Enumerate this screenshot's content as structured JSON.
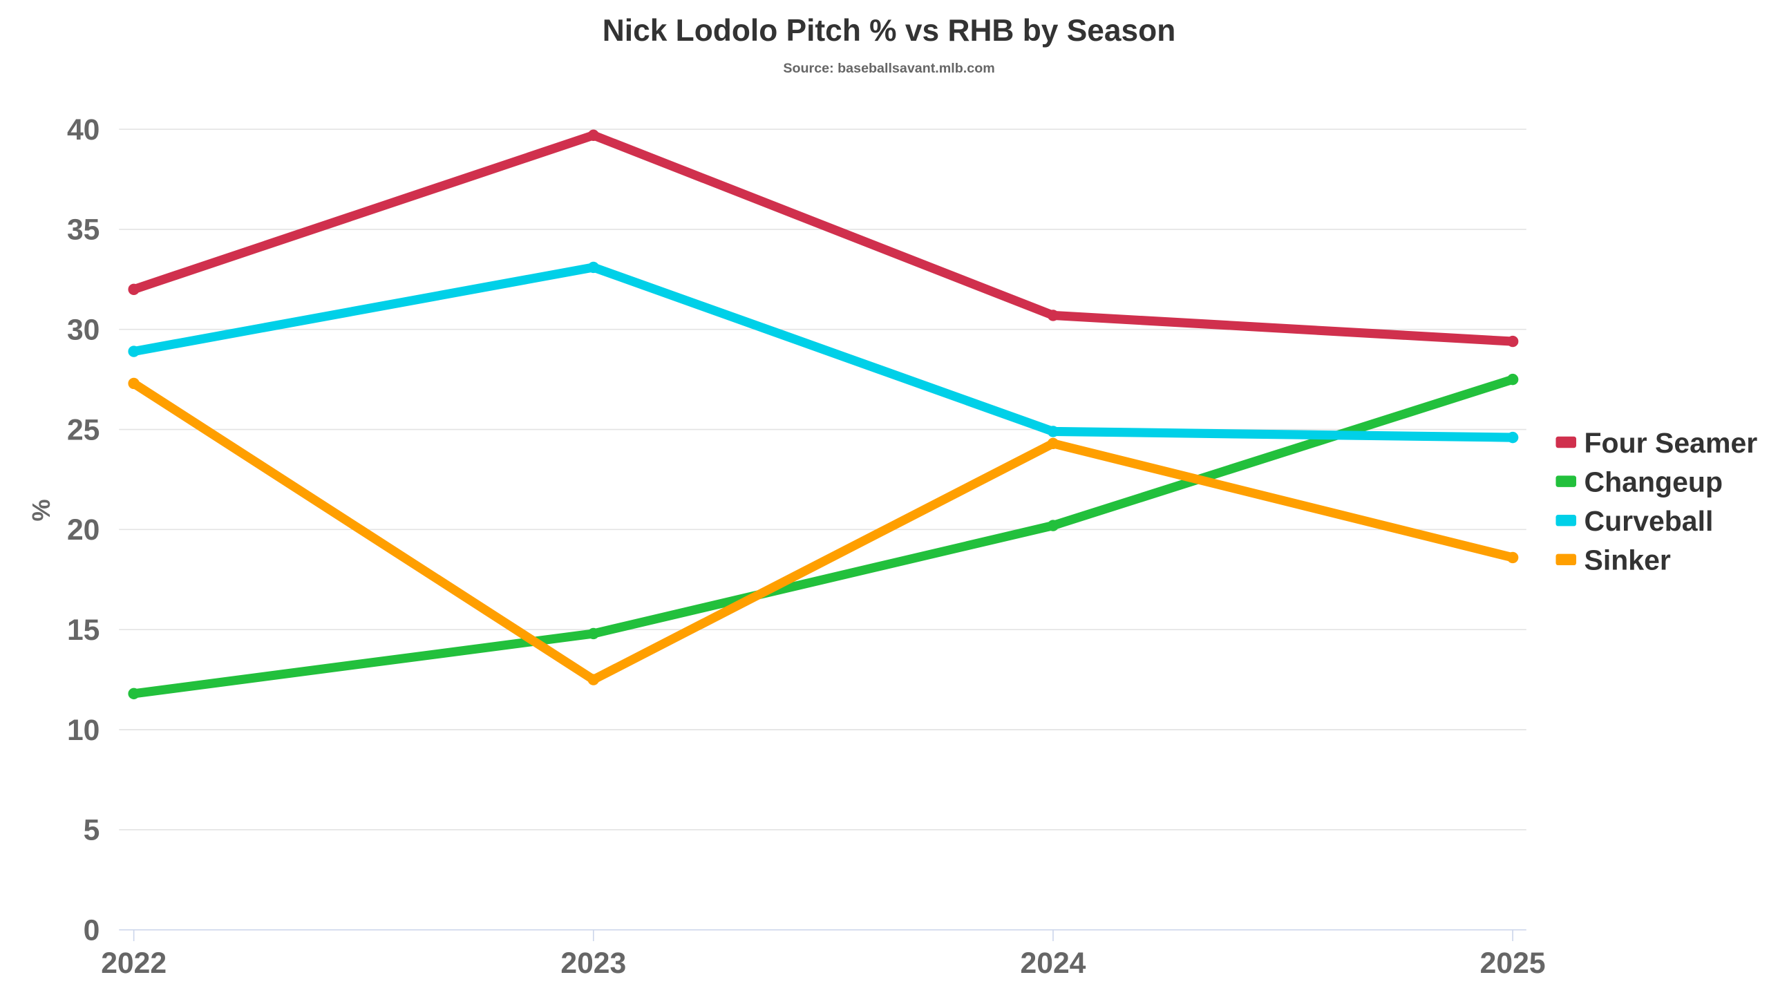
{
  "chart_data": {
    "type": "line",
    "title": "Nick Lodolo Pitch % vs RHB by Season",
    "subtitle": "Source: baseballsavant.mlb.com",
    "xlabel": "",
    "ylabel": "%",
    "categories": [
      "2022",
      "2023",
      "2024",
      "2025"
    ],
    "ylim": [
      0,
      40
    ],
    "yticks": [
      0,
      5,
      10,
      15,
      20,
      25,
      30,
      35,
      40
    ],
    "grid": true,
    "legend_position": "right",
    "series": [
      {
        "name": "Four Seamer",
        "color": "#d0304d",
        "values": [
          32.0,
          39.7,
          30.7,
          29.4
        ]
      },
      {
        "name": "Changeup",
        "color": "#22c03c",
        "values": [
          11.8,
          14.8,
          20.2,
          27.5
        ]
      },
      {
        "name": "Curveball",
        "color": "#00d0e8",
        "values": [
          28.9,
          33.1,
          24.9,
          24.6
        ]
      },
      {
        "name": "Sinker",
        "color": "#ff9f00",
        "values": [
          27.3,
          12.5,
          24.3,
          18.6
        ]
      }
    ]
  }
}
